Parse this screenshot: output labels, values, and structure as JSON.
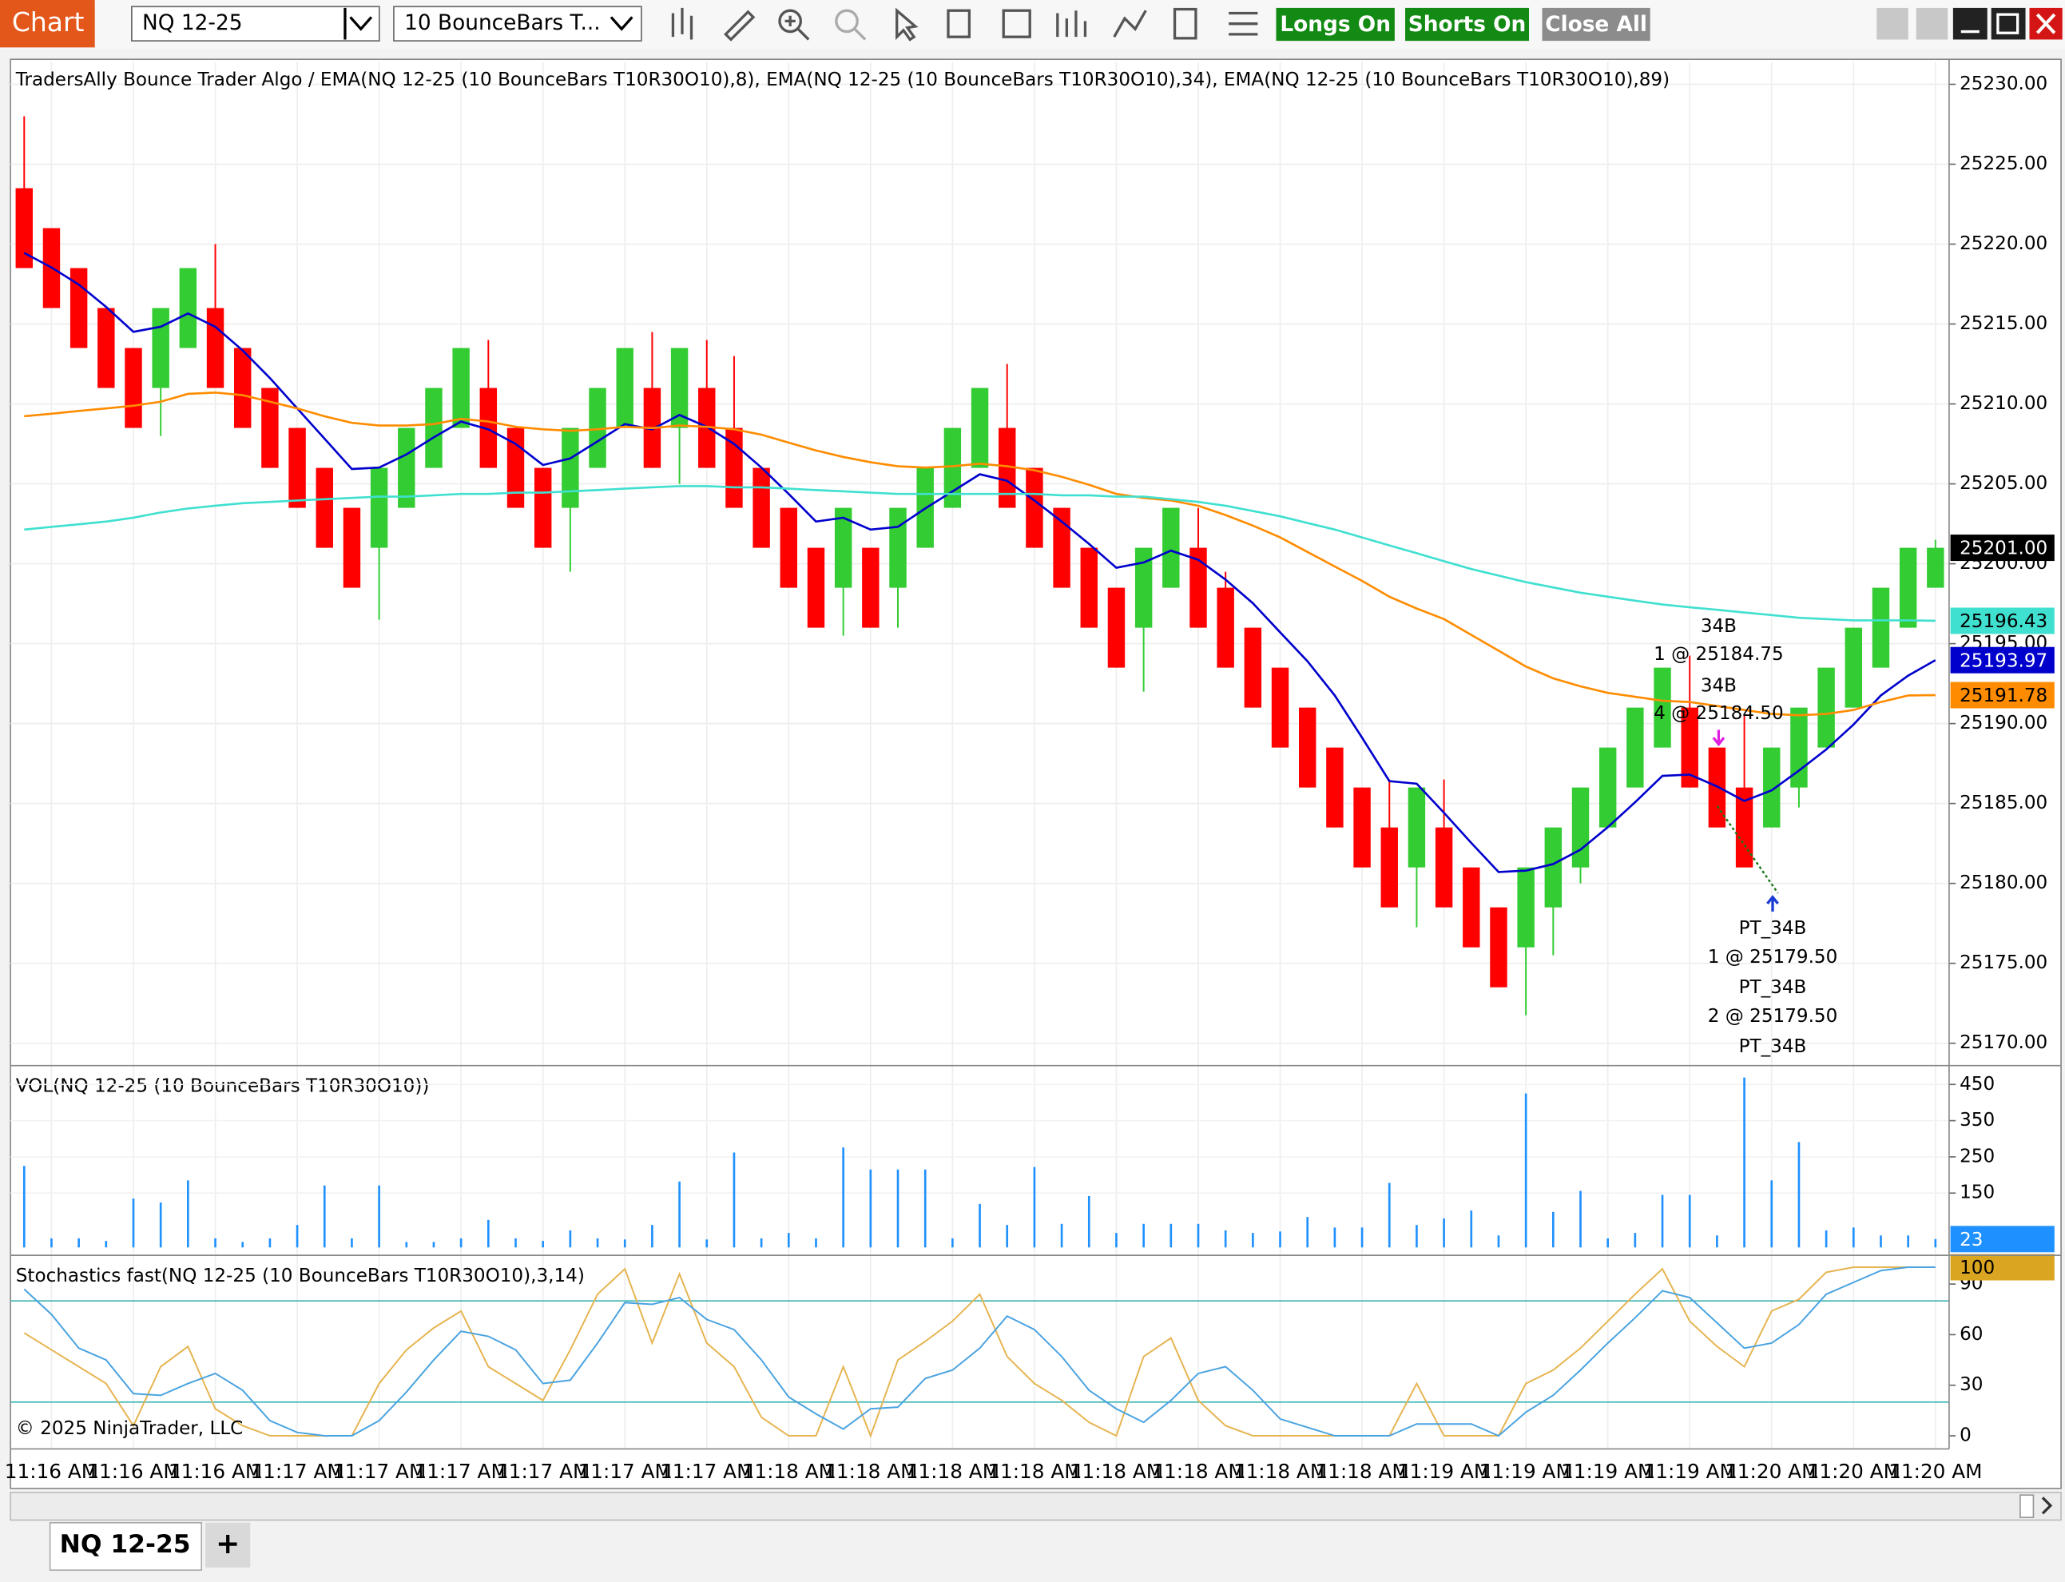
{
  "toolbar": {
    "tab": "Chart",
    "instrument": "NQ 12-25",
    "bar_type": "10 BounceBars T...",
    "buttons": [
      "Longs On",
      "Shorts On",
      "Close All"
    ]
  },
  "tabs": {
    "active": "NQ 12-25",
    "add": "+"
  },
  "copyright": "© 2025 NinjaTrader, LLC",
  "chart_data": [
    {
      "type": "candlestick",
      "title": "TradersAlly Bounce Trader Algo / EMA(NQ 12-25 (10 BounceBars T10R30O10),8), EMA(NQ 12-25 (10 BounceBars T10R30O10),34), EMA(NQ 12-25 (10 BounceBars T10R30O10),89)",
      "categories": [
        null,
        "11:16 AM",
        null,
        null,
        "11:16 AM",
        null,
        null,
        "11:16 AM",
        null,
        null,
        "11:17 AM",
        null,
        null,
        "11:17 AM",
        null,
        null,
        "11:17 AM",
        null,
        null,
        "11:17 AM",
        null,
        null,
        "11:17 AM",
        null,
        null,
        "11:17 AM",
        null,
        null,
        "11:18 AM",
        null,
        null,
        "11:18 AM",
        null,
        null,
        "11:18 AM",
        null,
        null,
        "11:18 AM",
        null,
        null,
        "11:18 AM",
        null,
        null,
        "11:18 AM",
        null,
        null,
        "11:18 AM",
        null,
        null,
        "11:18 AM",
        null,
        null,
        "11:19 AM",
        null,
        null,
        "11:19 AM",
        null,
        null,
        "11:19 AM",
        null,
        null,
        "11:19 AM",
        null,
        null,
        "11:20 AM",
        null,
        null,
        "11:20 AM",
        null,
        null,
        "11:20 AM"
      ],
      "open": [
        25223.5,
        25221,
        25218.5,
        25216,
        25213.5,
        25211,
        25213.5,
        25216,
        25213.5,
        25211,
        25208.5,
        25206,
        25203.5,
        25201,
        25203.5,
        25206,
        25208.5,
        25211,
        25208.5,
        25206,
        25203.5,
        25206,
        25208.5,
        25211,
        25208.5,
        25211,
        25208.5,
        25206,
        25203.5,
        25201,
        25198.5,
        25201,
        25198.5,
        25201,
        25203.5,
        25206,
        25208.5,
        25206,
        25203.5,
        25201,
        25198.5,
        25196,
        25198.5,
        25201,
        25198.5,
        25196,
        25193.5,
        25191,
        25188.5,
        25186,
        25183.5,
        25181,
        25183.5,
        25181,
        25178.5,
        25176,
        25178.5,
        25181,
        25183.5,
        25186,
        25188.5,
        25191,
        25188.5,
        25186,
        25183.5,
        25186,
        25188.5,
        25191,
        25193.5,
        25196,
        25198.5
      ],
      "high": [
        25228,
        25221,
        25218.5,
        25216,
        25213.5,
        25216,
        25218.5,
        25220,
        25213.5,
        25211,
        25208.5,
        25206,
        25203.5,
        25206,
        25208.5,
        25211,
        25213.5,
        25214,
        25208.5,
        25206,
        25208.5,
        25211,
        25213.5,
        25214.5,
        25213.5,
        25214,
        25213,
        25206,
        25203.5,
        25201,
        25203.5,
        25201,
        25203.5,
        25206,
        25208.5,
        25211,
        25212.5,
        25206,
        25203.5,
        25201,
        25198.5,
        25201,
        25203.5,
        25203.5,
        25199.5,
        25196,
        25193.5,
        25191,
        25188.5,
        25186,
        25186.5,
        25186,
        25186.5,
        25181,
        25178.5,
        25181,
        25183.5,
        25186,
        25188.5,
        25191,
        25193.5,
        25194.25,
        25188.5,
        25190.5,
        25188.5,
        25191,
        25193.5,
        25196,
        25198.5,
        25201,
        25201.5
      ],
      "low": [
        25218.5,
        25216,
        25213.5,
        25211,
        25208.5,
        25208,
        25213.5,
        25211,
        25208.5,
        25206,
        25203.5,
        25201,
        25198.5,
        25196.5,
        25203.5,
        25206,
        25208.5,
        25206,
        25203.5,
        25201,
        25199.5,
        25206,
        25208.5,
        25206,
        25205,
        25206,
        25203.5,
        25201,
        25198.5,
        25196,
        25195.5,
        25196,
        25196,
        25201,
        25203.5,
        25206,
        25203.5,
        25201,
        25198.5,
        25196,
        25193.5,
        25192,
        25198.5,
        25196,
        25193.5,
        25191,
        25188.5,
        25186,
        25183.5,
        25181,
        25178.5,
        25177.25,
        25178.5,
        25176,
        25173.5,
        25171.75,
        25175.5,
        25180,
        25183.5,
        25186,
        25188.5,
        25186,
        25183.5,
        25181,
        25183.5,
        25184.75,
        25188.5,
        25191,
        25193.5,
        25196,
        25198.5
      ],
      "close": [
        25218.5,
        25216,
        25213.5,
        25211,
        25208.5,
        25216,
        25218.5,
        25211,
        25208.5,
        25206,
        25203.5,
        25201,
        25198.5,
        25206,
        25208.5,
        25211,
        25213.5,
        25206,
        25203.5,
        25201,
        25208.5,
        25211,
        25213.5,
        25206,
        25213.5,
        25206,
        25203.5,
        25201,
        25198.5,
        25196,
        25203.5,
        25196,
        25203.5,
        25206,
        25208.5,
        25211,
        25203.5,
        25201,
        25198.5,
        25196,
        25193.5,
        25201,
        25203.5,
        25196,
        25193.5,
        25191,
        25188.5,
        25186,
        25183.5,
        25181,
        25178.5,
        25186,
        25178.5,
        25176,
        25173.5,
        25181,
        25183.5,
        25186,
        25188.5,
        25191,
        25193.5,
        25186,
        25183.5,
        25181,
        25188.5,
        25191,
        25193.5,
        25196,
        25198.5,
        25201,
        25201
      ],
      "up_color": "#33cc33",
      "down_color": "#ff0000",
      "series": [
        {
          "color": "#0000cd",
          "values": [
            25219.45,
            25218.54,
            25217.47,
            25216.07,
            25214.51,
            25214.83,
            25215.66,
            25214.83,
            25213.35,
            25211.62,
            25209.72,
            25207.83,
            25205.93,
            25206.02,
            25206.84,
            25207.91,
            25208.9,
            25208.41,
            25207.5,
            25206.18,
            25206.59,
            25207.66,
            25208.74,
            25208.41,
            25209.31,
            25208.57,
            25207.5,
            25206.02,
            25204.37,
            25202.64,
            25202.88,
            25202.14,
            25202.31,
            25203.46,
            25204.53,
            25205.6,
            25205.19,
            25203.96,
            25202.64,
            25201.24,
            25199.75,
            25200.08,
            25200.82,
            25200.25,
            25199.01,
            25197.53,
            25195.71,
            25193.9,
            25191.76,
            25189.12,
            25186.4,
            25186.24,
            25184.42,
            25182.53,
            25180.71,
            25180.8,
            25181.21,
            25182.11,
            25183.52,
            25185.08,
            25186.73,
            25186.81,
            25186.07,
            25185.16,
            25185.82,
            25187.06,
            25188.38,
            25189.94,
            25191.76,
            25193,
            25193.97
          ]
        },
        {
          "color": "#ff8c00",
          "values": [
            25209.23,
            25209.39,
            25209.56,
            25209.72,
            25209.89,
            25210.14,
            25210.63,
            25210.71,
            25210.55,
            25210.14,
            25209.72,
            25209.23,
            25208.82,
            25208.65,
            25208.65,
            25208.74,
            25209.07,
            25208.9,
            25208.57,
            25208.41,
            25208.32,
            25208.41,
            25208.57,
            25208.49,
            25208.65,
            25208.57,
            25208.41,
            25208.08,
            25207.58,
            25207.09,
            25206.68,
            25206.35,
            25206.1,
            25206.02,
            25206.1,
            25206.26,
            25206.1,
            25205.85,
            25205.44,
            25204.94,
            25204.37,
            25204.12,
            25203.96,
            25203.63,
            25203.05,
            25202.39,
            25201.65,
            25200.74,
            25199.83,
            25198.93,
            25197.94,
            25197.2,
            25196.54,
            25195.55,
            25194.56,
            25193.57,
            25192.83,
            25192.33,
            25191.92,
            25191.68,
            25191.43,
            25191.35,
            25191.1,
            25190.85,
            25190.6,
            25190.52,
            25190.6,
            25190.85,
            25191.35,
            25191.76,
            25191.78
          ]
        },
        {
          "color": "#40e0d0",
          "values": [
            25202.14,
            25202.31,
            25202.47,
            25202.64,
            25202.88,
            25203.21,
            25203.46,
            25203.63,
            25203.79,
            25203.87,
            25203.96,
            25204.04,
            25204.12,
            25204.2,
            25204.2,
            25204.28,
            25204.37,
            25204.37,
            25204.45,
            25204.45,
            25204.53,
            25204.61,
            25204.7,
            25204.78,
            25204.86,
            25204.86,
            25204.78,
            25204.78,
            25204.7,
            25204.61,
            25204.53,
            25204.45,
            25204.37,
            25204.37,
            25204.37,
            25204.37,
            25204.37,
            25204.37,
            25204.28,
            25204.28,
            25204.2,
            25204.2,
            25204.04,
            25203.87,
            25203.63,
            25203.3,
            25202.97,
            25202.55,
            25202.14,
            25201.65,
            25201.15,
            25200.66,
            25200.16,
            25199.67,
            25199.26,
            25198.85,
            25198.52,
            25198.19,
            25197.94,
            25197.69,
            25197.45,
            25197.28,
            25197.12,
            25196.95,
            25196.79,
            25196.62,
            25196.54,
            25196.46,
            25196.46,
            25196.46,
            25196.43
          ]
        }
      ],
      "ylim": [
        25168.68,
        25231.4
      ],
      "yticks": [
        {
          "value": 25170,
          "label": "25170.00"
        },
        {
          "value": 25175,
          "label": "25175.00"
        },
        {
          "value": 25180,
          "label": "25180.00"
        },
        {
          "value": 25185,
          "label": "25185.00"
        },
        {
          "value": 25190,
          "label": "25190.00"
        },
        {
          "value": 25195,
          "label": "25195.00"
        },
        {
          "value": 25200,
          "label": "25200.00"
        },
        {
          "value": 25205,
          "label": "25205.00"
        },
        {
          "value": 25210,
          "label": "25210.00"
        },
        {
          "value": 25215,
          "label": "25215.00"
        },
        {
          "value": 25220,
          "label": "25220.00"
        },
        {
          "value": 25225,
          "label": "25225.00"
        },
        {
          "value": 25230,
          "label": "25230.00"
        }
      ],
      "grid": true,
      "last_values": [
        {
          "value": 25201,
          "label": "25201.00",
          "color": "#000000",
          "text_color": "#ffffff"
        },
        {
          "value": 25196.43,
          "label": "25196.43",
          "color": "#40e0d0",
          "text_color": "#000000"
        },
        {
          "value": 25193.97,
          "label": "25193.97",
          "color": "#0000cd",
          "text_color": "#ffffff"
        },
        {
          "value": 25191.78,
          "label": "25191.78",
          "color": "#ff8c00",
          "text_color": "#000000"
        }
      ],
      "annotations": [
        "34B",
        "1 @ 25184.75",
        "34B",
        "4 @ 25184.50",
        "PT_34B",
        "1 @ 25179.50",
        "PT_34B",
        "2 @ 25179.50",
        "PT_34B"
      ]
    },
    {
      "type": "bar",
      "title": "VOL(NQ 12-25 (10 BounceBars T10R30O10))",
      "color": "#1e90ff",
      "values": [
        225,
        25,
        25,
        18,
        135,
        124,
        185,
        25,
        15,
        25,
        62,
        171,
        25,
        171,
        15,
        15,
        25,
        76,
        25,
        18,
        47,
        25,
        22,
        62,
        182,
        22,
        262,
        25,
        40,
        25,
        276,
        215,
        215,
        215,
        25,
        120,
        62,
        222,
        65,
        142,
        40,
        65,
        65,
        65,
        47,
        40,
        44,
        84,
        55,
        55,
        178,
        62,
        80,
        102,
        33,
        425,
        98,
        156,
        25,
        40,
        145,
        145,
        33,
        469,
        185,
        291,
        47,
        55,
        33,
        33,
        23
      ],
      "ylim": [
        0,
        491
      ],
      "yticks": [
        150,
        250,
        350,
        450
      ],
      "last_value": 23
    },
    {
      "type": "line",
      "title": "Stochastics fast(NQ 12-25 (10 BounceBars T10R30O10),3,14)",
      "series": [
        {
          "color": "#e6b450",
          "values": [
            61,
            51,
            41,
            31,
            6,
            41,
            53,
            16,
            6,
            0,
            0,
            0,
            0,
            31,
            51,
            64,
            74,
            41,
            31,
            21,
            51,
            84,
            99,
            55,
            96,
            55,
            41,
            11,
            0,
            0,
            41,
            0,
            45,
            56,
            68,
            84,
            47,
            31,
            21,
            8,
            0,
            47,
            58,
            21,
            6,
            0,
            0,
            0,
            0,
            0,
            0,
            31,
            0,
            0,
            0,
            31,
            39,
            52,
            68,
            84,
            99,
            68,
            53,
            41,
            74,
            81,
            97,
            100,
            100,
            100,
            100
          ]
        },
        {
          "color": "#4aa3e0",
          "values": [
            87,
            72,
            52,
            45,
            25,
            24,
            31,
            37,
            27,
            9,
            2,
            0,
            0,
            9,
            26,
            45,
            62,
            59,
            51,
            31,
            33,
            55,
            79,
            78,
            82,
            69,
            63,
            45,
            23,
            13,
            4,
            16,
            17,
            34,
            39,
            52,
            71,
            63,
            47,
            27,
            16,
            8,
            21,
            37,
            41,
            27,
            10,
            5,
            0,
            0,
            0,
            7,
            7,
            7,
            0,
            14,
            24,
            39,
            55,
            70,
            86,
            82,
            67,
            52,
            55,
            66,
            84,
            91,
            98,
            100,
            100
          ]
        }
      ],
      "levels": [
        20,
        80
      ],
      "level_color": "#3cb4b4",
      "ylim": [
        -7.8,
        105.5
      ],
      "yticks": [
        0,
        30,
        60,
        90
      ],
      "last_value": 100,
      "last_color": "#daa520"
    }
  ]
}
